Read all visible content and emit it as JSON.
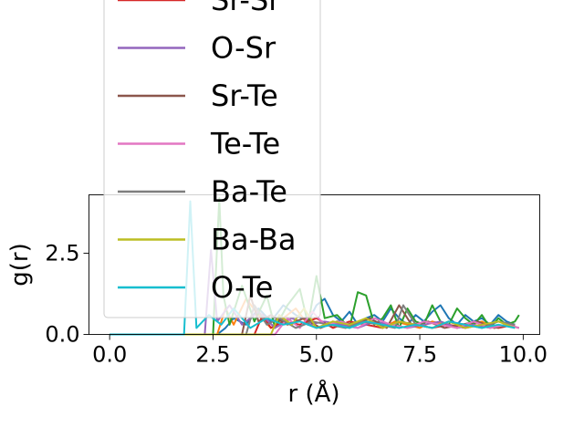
{
  "chart_data": {
    "type": "line",
    "title": "",
    "xlabel": "r (Å)",
    "ylabel": "g(r)",
    "xlim": [
      -0.5,
      10.4
    ],
    "ylim": [
      0.0,
      4.3
    ],
    "xticks": [
      {
        "value": 0.0,
        "label": "0.0"
      },
      {
        "value": 2.5,
        "label": "2.5"
      },
      {
        "value": 5.0,
        "label": "5.0"
      },
      {
        "value": 7.5,
        "label": "7.5"
      },
      {
        "value": 10.0,
        "label": "10.0"
      }
    ],
    "yticks": [
      {
        "value": 0.0,
        "label": "0.0"
      },
      {
        "value": 2.5,
        "label": "2.5"
      }
    ],
    "grid": false,
    "legend": "upper-left, overflowing above the axes",
    "series": [
      {
        "name": "",
        "color": "#1f77b4",
        "x": [
          0,
          1.8,
          2.0,
          2.2,
          2.6,
          2.8,
          3.0,
          3.3,
          3.6,
          3.9,
          4.2,
          4.5,
          4.8,
          5.0,
          5.2,
          5.4,
          5.6,
          5.8,
          6.0,
          6.2,
          6.4,
          6.6,
          6.8,
          7.0,
          7.2,
          7.4,
          7.6,
          7.8,
          8.0,
          8.2,
          8.4,
          8.6,
          8.8,
          9.0,
          9.2,
          9.4,
          9.6,
          9.8
        ],
        "y": [
          0,
          0,
          0,
          0,
          0,
          0.2,
          0.5,
          0.3,
          0.8,
          0.4,
          0.9,
          0.6,
          0.4,
          0.9,
          1.1,
          0.6,
          0.4,
          0.7,
          0.3,
          0.5,
          0.6,
          0.4,
          0.8,
          0.5,
          0.3,
          0.6,
          0.4,
          0.7,
          0.9,
          0.5,
          0.3,
          0.6,
          0.4,
          0.5,
          0.3,
          0.6,
          0.4,
          0.3
        ]
      },
      {
        "name": "",
        "color": "#ff7f0e",
        "x": [
          0,
          2.0,
          2.6,
          2.8,
          3.0,
          3.3,
          3.6,
          3.9,
          4.2,
          4.5,
          4.8,
          5.1,
          5.4,
          5.7,
          6.0,
          6.3,
          6.6,
          6.9,
          7.2,
          7.5,
          7.8,
          8.1,
          8.4,
          8.7,
          9.0,
          9.3,
          9.6,
          9.9
        ],
        "y": [
          0,
          0,
          0,
          0.8,
          0.3,
          1.1,
          0.6,
          0.2,
          0.5,
          0.8,
          0.3,
          0.2,
          0.4,
          0.2,
          0.3,
          0.5,
          0.2,
          0.4,
          0.3,
          0.2,
          0.4,
          0.3,
          0.2,
          0.3,
          0.4,
          0.2,
          0.3,
          0.2
        ]
      },
      {
        "name": "",
        "color": "#2ca02c",
        "x": [
          0,
          2.2,
          2.5,
          2.65,
          2.75,
          2.9,
          3.2,
          3.5,
          3.8,
          4.0,
          4.3,
          4.6,
          4.8,
          5.0,
          5.2,
          5.5,
          5.8,
          6.0,
          6.2,
          6.4,
          6.6,
          6.8,
          7.0,
          7.2,
          7.4,
          7.6,
          7.8,
          8.0,
          8.2,
          8.4,
          8.6,
          8.8,
          9.0,
          9.2,
          9.4,
          9.6,
          9.8,
          9.9
        ],
        "y": [
          0,
          0,
          0,
          4.2,
          1.2,
          0.3,
          1.5,
          0.4,
          1.2,
          0.2,
          0.9,
          1.4,
          0.3,
          1.8,
          0.5,
          0.6,
          0.2,
          1.3,
          1.2,
          0.3,
          0.5,
          0.9,
          0.2,
          0.8,
          0.4,
          0.3,
          0.9,
          0.4,
          0.3,
          0.8,
          0.5,
          0.3,
          0.6,
          0.2,
          0.5,
          0.3,
          0.4,
          0.6
        ]
      },
      {
        "name": "Sr-Sr",
        "color": "#d62728",
        "x": [
          0,
          3.5,
          3.7,
          3.9,
          4.2,
          4.6,
          5.0,
          5.4,
          5.8,
          6.2,
          6.6,
          7.0,
          7.4,
          7.8,
          8.2,
          8.6,
          9.0,
          9.4,
          9.8
        ],
        "y": [
          0,
          0,
          0.6,
          0.2,
          0.4,
          0.3,
          0.5,
          0.2,
          0.4,
          0.3,
          0.2,
          0.4,
          0.3,
          0.2,
          0.3,
          0.2,
          0.3,
          0.2,
          0.3
        ]
      },
      {
        "name": "O-Sr",
        "color": "#9467bd",
        "x": [
          0,
          2.3,
          2.45,
          2.6,
          2.9,
          3.2,
          3.6,
          4.0,
          4.4,
          4.8,
          5.2,
          5.6,
          6.0,
          6.4,
          6.8,
          7.2,
          7.6,
          8.0,
          8.4,
          8.8,
          9.2,
          9.6,
          9.9
        ],
        "y": [
          0,
          0,
          2.6,
          0.4,
          0.9,
          0.3,
          0.7,
          0.2,
          0.5,
          0.3,
          0.4,
          0.3,
          0.2,
          0.4,
          0.3,
          0.2,
          0.3,
          0.4,
          0.2,
          0.3,
          0.2,
          0.3,
          0.2
        ]
      },
      {
        "name": "Sr-Te",
        "color": "#8c564b",
        "x": [
          0,
          3.2,
          3.4,
          3.6,
          3.9,
          4.3,
          4.7,
          5.1,
          5.5,
          5.9,
          6.3,
          6.7,
          7.0,
          7.3,
          7.7,
          8.1,
          8.5,
          8.9,
          9.3,
          9.7
        ],
        "y": [
          0,
          0,
          1.2,
          0.4,
          0.6,
          0.3,
          0.5,
          0.2,
          0.4,
          0.3,
          0.5,
          0.2,
          0.9,
          0.3,
          0.4,
          0.2,
          0.3,
          0.4,
          0.2,
          0.3
        ]
      },
      {
        "name": "Te-Te",
        "color": "#e377c2",
        "x": [
          0,
          4.0,
          4.3,
          4.6,
          4.9,
          5.2,
          5.6,
          6.0,
          6.4,
          6.8,
          7.2,
          7.6,
          8.0,
          8.4,
          8.8,
          9.2,
          9.6,
          9.9
        ],
        "y": [
          0,
          0,
          0.5,
          0.2,
          0.7,
          0.3,
          0.4,
          0.2,
          0.5,
          0.3,
          0.2,
          0.4,
          0.3,
          0.2,
          0.4,
          0.2,
          0.3,
          0.2
        ]
      },
      {
        "name": "Ba-Te",
        "color": "#7f7f7f",
        "x": [
          0,
          3.3,
          3.5,
          3.8,
          4.1,
          4.5,
          4.9,
          5.3,
          5.7,
          6.1,
          6.5,
          6.9,
          7.1,
          7.4,
          7.8,
          8.2,
          8.6,
          9.0,
          9.4,
          9.8
        ],
        "y": [
          0,
          0,
          0.9,
          0.3,
          0.5,
          0.2,
          0.4,
          0.3,
          0.2,
          0.4,
          0.3,
          0.2,
          0.9,
          0.3,
          0.2,
          0.4,
          0.3,
          0.2,
          0.4,
          0.3
        ]
      },
      {
        "name": "Ba-Ba",
        "color": "#bcbd22",
        "x": [
          0,
          3.9,
          4.1,
          4.4,
          4.7,
          5.0,
          5.4,
          5.8,
          6.2,
          6.6,
          7.0,
          7.4,
          7.8,
          8.2,
          8.6,
          9.0,
          9.4,
          9.8
        ],
        "y": [
          0,
          0,
          0.6,
          0.3,
          0.8,
          0.2,
          0.4,
          0.3,
          0.5,
          0.2,
          0.4,
          0.3,
          0.2,
          0.4,
          0.2,
          0.3,
          0.4,
          0.2
        ]
      },
      {
        "name": "O-Te",
        "color": "#17becf",
        "x": [
          0,
          1.8,
          1.95,
          2.1,
          2.4,
          2.7,
          3.0,
          3.4,
          3.8,
          4.2,
          4.6,
          5.0,
          5.4,
          5.8,
          6.2,
          6.6,
          7.0,
          7.4,
          7.8,
          8.2,
          8.6,
          9.0,
          9.4,
          9.8
        ],
        "y": [
          0,
          0,
          4.1,
          0.2,
          0.6,
          0.3,
          0.8,
          0.2,
          0.5,
          0.3,
          0.4,
          0.2,
          0.3,
          0.2,
          0.4,
          0.3,
          0.2,
          0.3,
          0.2,
          0.4,
          0.3,
          0.2,
          0.3,
          0.2
        ]
      }
    ]
  }
}
